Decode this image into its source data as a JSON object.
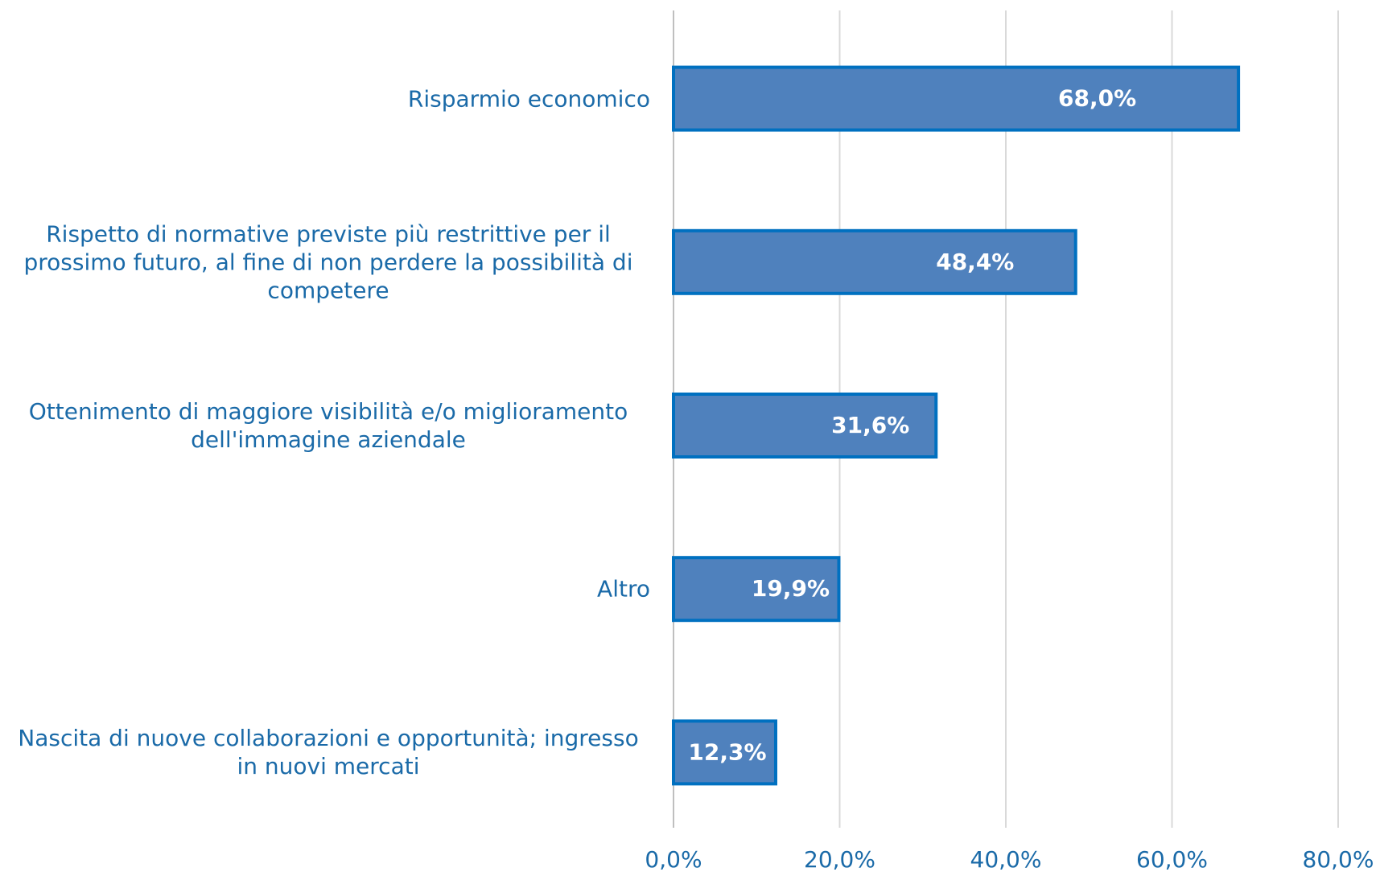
{
  "chart_data": {
    "type": "bar",
    "orientation": "horizontal",
    "categories": [
      "Risparmio economico",
      "Rispetto di normative previste più restrittive per il prossimo futuro, al fine di non perdere la possibilità di competere",
      "Ottenimento di maggiore visibilità e/o miglioramento dell'immagine aziendale",
      "Altro",
      "Nascita di nuove collaborazioni e opportunità; ingresso in nuovi mercati"
    ],
    "values": [
      68.0,
      48.4,
      31.6,
      19.9,
      12.3
    ],
    "value_labels": [
      "68,0%",
      "48,4%",
      "31,6%",
      "19,9%",
      "12,3%"
    ],
    "color": "#4f81bd",
    "edge_color": "#0070c0",
    "xlim": [
      0,
      80
    ],
    "xticks": [
      {
        "value": 0,
        "label": "0,0%"
      },
      {
        "value": 20,
        "label": "20,0%"
      },
      {
        "value": 40,
        "label": "40,0%"
      },
      {
        "value": 60,
        "label": "60,0%"
      },
      {
        "value": 80,
        "label": "80,0%"
      }
    ],
    "grid": true
  }
}
